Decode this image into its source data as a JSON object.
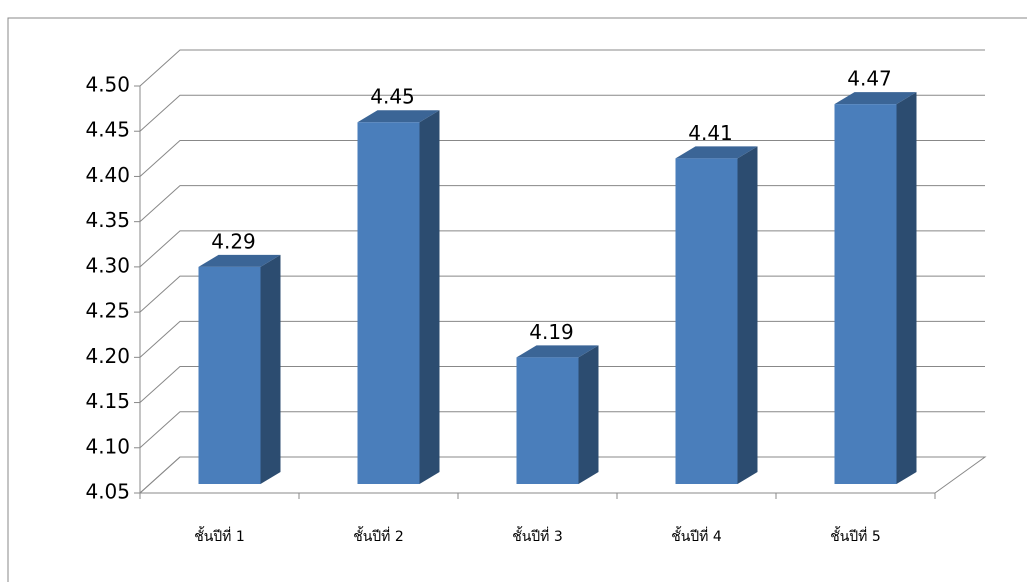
{
  "chart_data": {
    "type": "bar3d",
    "categories": [
      "ชั้นปีที่ 1",
      "ชั้นปีที่ 2",
      "ชั้นปีที่ 3",
      "ชั้นปีที่ 4",
      "ชั้นปีที่ 5"
    ],
    "values": [
      4.29,
      4.45,
      4.19,
      4.41,
      4.47
    ],
    "color": "#4a7ebb",
    "ylim": [
      4.05,
      4.5
    ],
    "yticks": [
      4.05,
      {
        "value": 4.1,
        "label": "4.10"
      },
      4.15,
      {
        "value": 4.2,
        "label": "4.20"
      },
      4.25,
      {
        "value": 4.3,
        "label": "4.30"
      },
      4.35,
      {
        "value": 4.4,
        "label": "4.40"
      },
      4.45,
      {
        "value": 4.5,
        "label": "4.50"
      }
    ],
    "grid": true
  }
}
